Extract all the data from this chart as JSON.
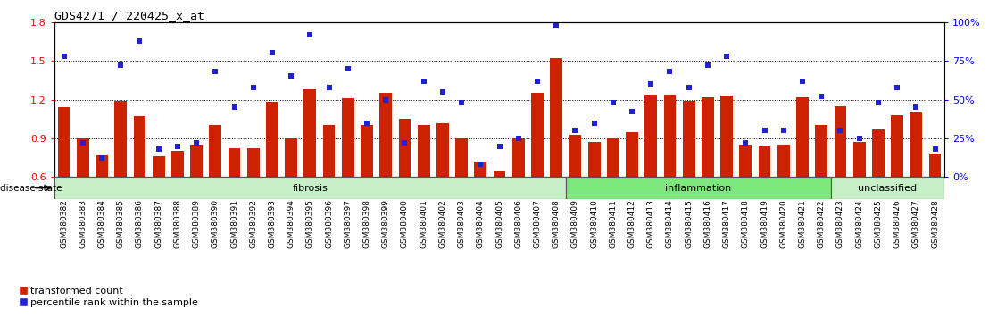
{
  "title": "GDS4271 / 220425_x_at",
  "samples": [
    "GSM380382",
    "GSM380383",
    "GSM380384",
    "GSM380385",
    "GSM380386",
    "GSM380387",
    "GSM380388",
    "GSM380389",
    "GSM380390",
    "GSM380391",
    "GSM380392",
    "GSM380393",
    "GSM380394",
    "GSM380395",
    "GSM380396",
    "GSM380397",
    "GSM380398",
    "GSM380399",
    "GSM380400",
    "GSM380401",
    "GSM380402",
    "GSM380403",
    "GSM380404",
    "GSM380405",
    "GSM380406",
    "GSM380407",
    "GSM380408",
    "GSM380409",
    "GSM380410",
    "GSM380411",
    "GSM380412",
    "GSM380413",
    "GSM380414",
    "GSM380415",
    "GSM380416",
    "GSM380417",
    "GSM380418",
    "GSM380419",
    "GSM380420",
    "GSM380421",
    "GSM380422",
    "GSM380423",
    "GSM380424",
    "GSM380425",
    "GSM380426",
    "GSM380427",
    "GSM380428"
  ],
  "bar_values": [
    1.14,
    0.9,
    0.77,
    1.19,
    1.07,
    0.76,
    0.8,
    0.85,
    1.0,
    0.82,
    0.82,
    1.18,
    0.9,
    1.28,
    1.0,
    1.21,
    1.0,
    1.25,
    1.05,
    1.0,
    1.02,
    0.9,
    0.72,
    0.64,
    0.9,
    1.25,
    1.52,
    0.93,
    0.87,
    0.9,
    0.95,
    1.24,
    1.24,
    1.19,
    1.22,
    1.23,
    0.85,
    0.84,
    0.85,
    1.22,
    1.0,
    1.15,
    0.87,
    0.97,
    1.08,
    1.1,
    0.78
  ],
  "blue_values": [
    78,
    22,
    12,
    72,
    88,
    18,
    20,
    22,
    68,
    45,
    58,
    80,
    65,
    92,
    58,
    70,
    35,
    50,
    22,
    62,
    55,
    48,
    8,
    20,
    25,
    62,
    98,
    30,
    35,
    48,
    42,
    60,
    68,
    58,
    72,
    78,
    22,
    30,
    30,
    62,
    52,
    30,
    25,
    48,
    58,
    45,
    18
  ],
  "groups": [
    {
      "label": "fibrosis",
      "start": 0,
      "end": 27,
      "color": "#c8f0c8"
    },
    {
      "label": "inflammation",
      "start": 27,
      "end": 41,
      "color": "#7de87d"
    },
    {
      "label": "unclassified",
      "start": 41,
      "end": 47,
      "color": "#c8f0c8"
    }
  ],
  "bar_color": "#cc2200",
  "blue_color": "#2222cc",
  "ylim_left": [
    0.6,
    1.8
  ],
  "ylim_right": [
    0,
    100
  ],
  "yticks_left": [
    0.6,
    0.9,
    1.2,
    1.5,
    1.8
  ],
  "yticks_right": [
    0,
    25,
    50,
    75,
    100
  ],
  "hlines": [
    0.9,
    1.2,
    1.5
  ],
  "legend_items": [
    "transformed count",
    "percentile rank within the sample"
  ]
}
